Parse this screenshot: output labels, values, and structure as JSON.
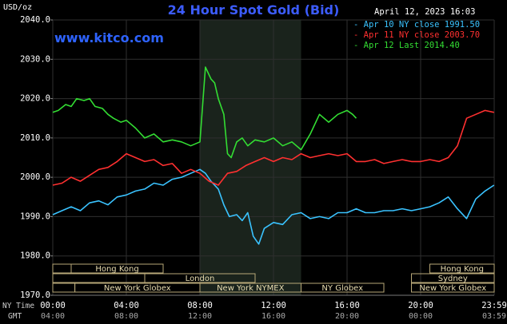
{
  "header": {
    "title": "24 Hour Spot Gold (Bid)",
    "unit": "USD/oz",
    "date": "April 12, 2023 16:03",
    "watermark": "www.kitco.com"
  },
  "legend": [
    {
      "label": "Apr 10 NY close 1991.50",
      "color": "#3ac3ff"
    },
    {
      "label": "Apr 11 NY close 2003.70",
      "color": "#ff3030"
    },
    {
      "label": "Apr 12 Last 2014.40",
      "color": "#33dd33"
    }
  ],
  "axis": {
    "ny_time_label": "NY Time",
    "gmt_label": "GMT",
    "y_ticks": [
      "2040.0",
      "2030.0",
      "2020.0",
      "2010.0",
      "2000.0",
      "1990.0",
      "1980.0",
      "1970.0"
    ],
    "ny_ticks": [
      "00:00",
      "04:00",
      "08:00",
      "12:00",
      "16:00",
      "20:00",
      "23:59"
    ],
    "gmt_ticks": [
      "04:00",
      "08:00",
      "12:00",
      "16:00",
      "20:00",
      "00:00",
      "03:59"
    ]
  },
  "sessions": [
    {
      "label": "Hong Kong"
    },
    {
      "label": "London"
    },
    {
      "label": "New York Globex"
    },
    {
      "label": "New York NYMEX"
    },
    {
      "label": "NY Globex"
    },
    {
      "label": "Hong Kong"
    },
    {
      "label": "Sydney"
    },
    {
      "label": "New York Globex"
    }
  ],
  "chart_data": {
    "type": "line",
    "title": "24 Hour Spot Gold (Bid)",
    "ylabel": "USD/oz",
    "ylim": [
      1970,
      2040
    ],
    "xlim": [
      0,
      24
    ],
    "x_unit": "hours (NY time)",
    "grid": true,
    "highlight_range": [
      8,
      13.5
    ],
    "series": [
      {
        "name": "Apr 10 NY close 1991.50",
        "color": "#3ac3ff",
        "x": [
          0,
          0.5,
          1,
          1.5,
          2,
          2.5,
          3,
          3.5,
          4,
          4.5,
          5,
          5.5,
          6,
          6.5,
          7,
          7.5,
          8,
          8.3,
          8.6,
          9,
          9.3,
          9.6,
          10,
          10.3,
          10.6,
          10.9,
          11.2,
          11.5,
          12,
          12.5,
          13,
          13.5,
          14,
          14.5,
          15,
          15.5,
          16,
          16.5,
          17,
          17.5,
          18,
          18.5,
          19,
          19.5,
          20,
          20.5,
          21,
          21.5,
          22,
          22.5,
          23,
          23.5,
          23.99
        ],
        "y": [
          1990.5,
          1991.5,
          1992.5,
          1991.5,
          1993.5,
          1994,
          1993,
          1995,
          1995.5,
          1996.5,
          1997,
          1998.5,
          1998,
          1999.5,
          2000,
          2001,
          2002,
          2001,
          1999,
          1997,
          1993,
          1990,
          1990.5,
          1989,
          1991,
          1985,
          1983,
          1987,
          1988.5,
          1988,
          1990.5,
          1991,
          1989.5,
          1990,
          1989.5,
          1991,
          1991,
          1992,
          1991,
          1991,
          1991.5,
          1991.5,
          1992,
          1991.5,
          1992,
          1992.5,
          1993.5,
          1995,
          1992,
          1989.5,
          1994.5,
          1996.5,
          1998
        ]
      },
      {
        "name": "Apr 11 NY close 2003.70",
        "color": "#ff3030",
        "x": [
          0,
          0.5,
          1,
          1.5,
          2,
          2.5,
          3,
          3.5,
          4,
          4.5,
          5,
          5.5,
          6,
          6.5,
          7,
          7.5,
          8,
          8.5,
          9,
          9.5,
          10,
          10.5,
          11,
          11.5,
          12,
          12.5,
          13,
          13.5,
          14,
          14.5,
          15,
          15.5,
          16,
          16.5,
          17,
          17.5,
          18,
          18.5,
          19,
          19.5,
          20,
          20.5,
          21,
          21.5,
          22,
          22.5,
          23,
          23.5,
          23.99
        ],
        "y": [
          1998,
          1998.5,
          2000,
          1999,
          2000.5,
          2002,
          2002.5,
          2004,
          2006,
          2005,
          2004,
          2004.5,
          2003,
          2003.5,
          2001,
          2002,
          2001,
          1999,
          1998,
          2001,
          2001.5,
          2003,
          2004,
          2005,
          2004,
          2005,
          2004.5,
          2006,
          2005,
          2005.5,
          2006,
          2005.5,
          2006,
          2004,
          2004,
          2004.5,
          2003.5,
          2004,
          2004.5,
          2004,
          2004,
          2004.5,
          2004,
          2005,
          2008,
          2015,
          2016,
          2017,
          2016.5
        ]
      },
      {
        "name": "Apr 12 Last 2014.40",
        "color": "#33dd33",
        "x": [
          0,
          0.3,
          0.7,
          1,
          1.3,
          1.7,
          2,
          2.3,
          2.7,
          3,
          3.3,
          3.7,
          4,
          4.5,
          5,
          5.5,
          6,
          6.5,
          7,
          7.5,
          8,
          8.3,
          8.6,
          8.8,
          9,
          9.3,
          9.5,
          9.7,
          10,
          10.3,
          10.6,
          11,
          11.5,
          12,
          12.5,
          13,
          13.5,
          14,
          14.5,
          15,
          15.5,
          16,
          16.3,
          16.5
        ],
        "y": [
          2016.5,
          2017,
          2018.5,
          2018,
          2020,
          2019.5,
          2020,
          2018,
          2017.5,
          2016,
          2015,
          2014,
          2014.5,
          2012.5,
          2010,
          2011,
          2009,
          2009.5,
          2009,
          2008,
          2009,
          2028,
          2025,
          2024,
          2020,
          2016,
          2006,
          2005,
          2009,
          2010,
          2008,
          2009.5,
          2009,
          2010,
          2008,
          2009,
          2007,
          2011,
          2016,
          2014,
          2016,
          2017,
          2016,
          2015
        ]
      }
    ]
  }
}
